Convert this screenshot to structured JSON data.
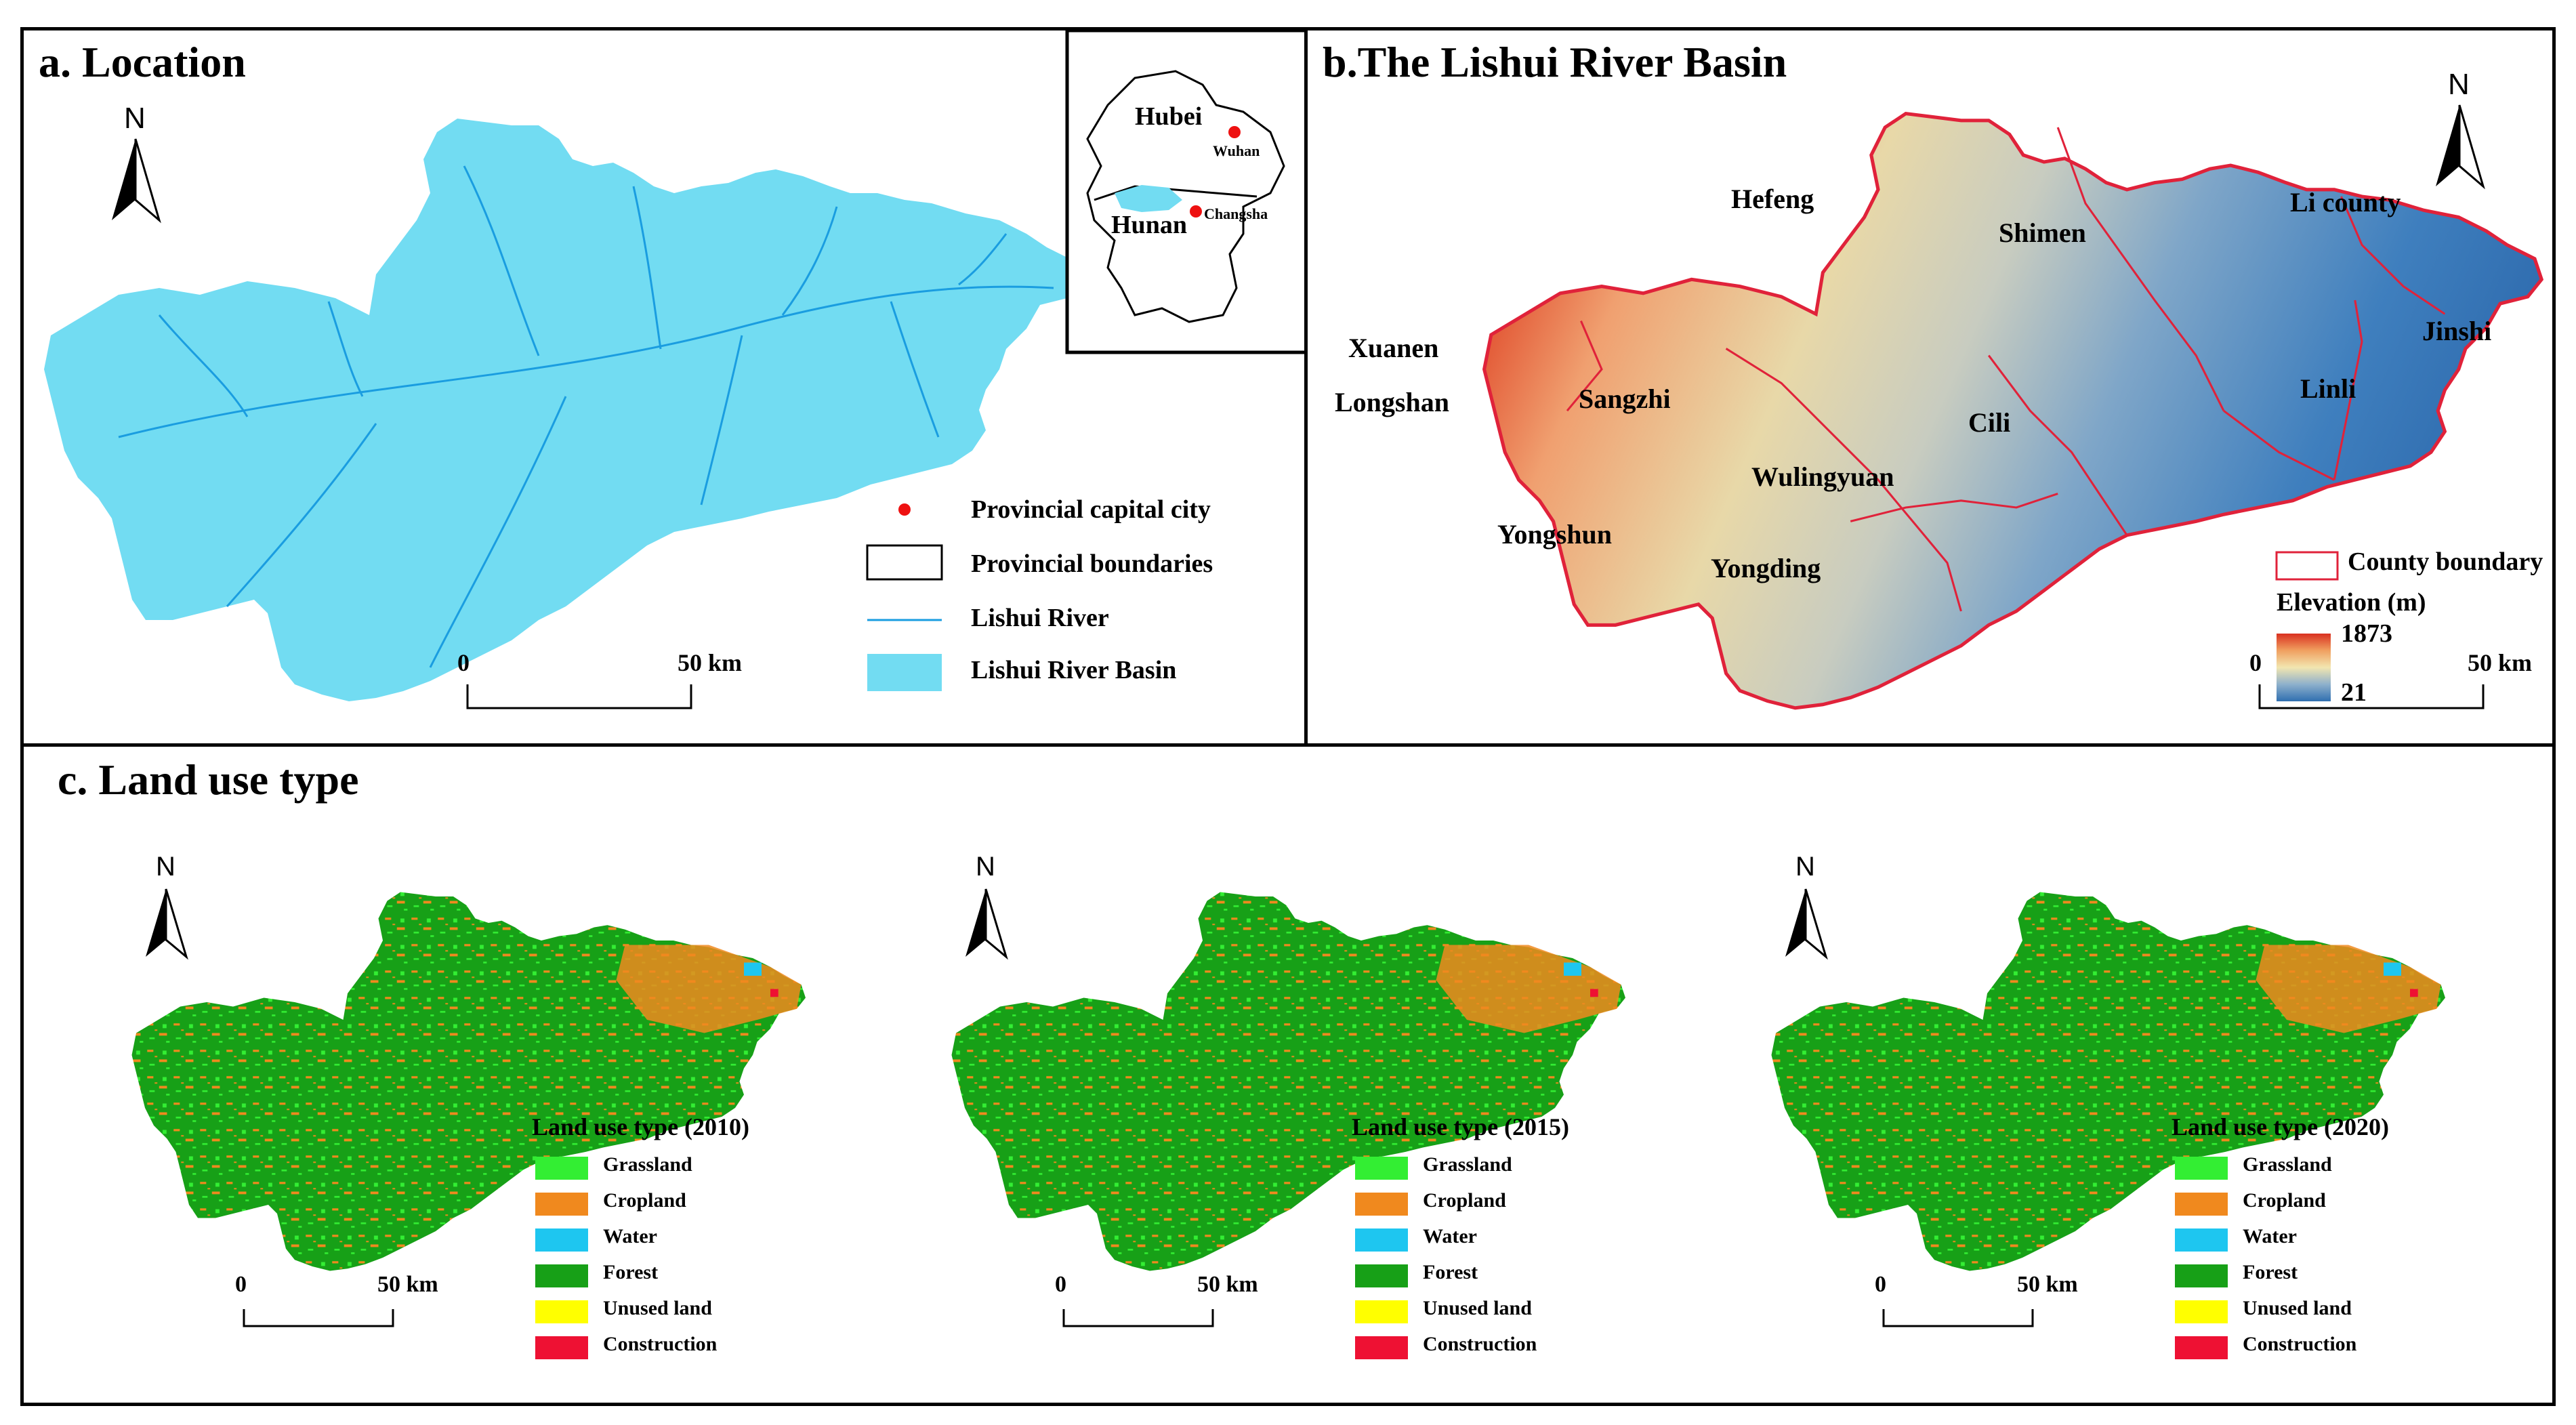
{
  "panel_a": {
    "title": "a. Location",
    "north": "N",
    "inset": {
      "hubei": "Hubei",
      "hunan": "Hunan",
      "wuhan": "Wuhan",
      "changsha": "Changsha"
    },
    "legend": {
      "capital": "Provincial capital city",
      "boundaries": "Provincial boundaries",
      "river": "Lishui River",
      "basin": "Lishui River Basin"
    },
    "scale": {
      "zero": "0",
      "end": "50 km"
    }
  },
  "panel_b": {
    "title": "b.The Lishui River Basin",
    "north": "N",
    "counties": {
      "hefeng": "Hefeng",
      "shimen": "Shimen",
      "li_county": "Li county",
      "xuanen": "Xuanen",
      "longshan": "Longshan",
      "sangzhi": "Sangzhi",
      "cili": "Cili",
      "linli": "Linli",
      "jinshi": "Jinshi",
      "wulingyuan": "Wulingyuan",
      "yongshun": "Yongshun",
      "yongding": "Yongding"
    },
    "legend": {
      "county_boundary": "County boundary",
      "elevation_title": "Elevation (m)",
      "max": "1873",
      "min": "21"
    },
    "scale": {
      "zero": "0",
      "end": "50 km"
    }
  },
  "panel_c": {
    "title": "c. Land use type",
    "maps": [
      {
        "north": "N",
        "legend_title": "Land use type (2010)",
        "scale_zero": "0",
        "scale_end": "50 km"
      },
      {
        "north": "N",
        "legend_title": "Land use type (2015)",
        "scale_zero": "0",
        "scale_end": "50 km"
      },
      {
        "north": "N",
        "legend_title": "Land use type (2020)",
        "scale_zero": "0",
        "scale_end": "50 km"
      }
    ],
    "classes": [
      {
        "label": "Grassland",
        "color": "#33ee33"
      },
      {
        "label": "Cropland",
        "color": "#f0891e"
      },
      {
        "label": "Water",
        "color": "#1ec6f0"
      },
      {
        "label": "Forest",
        "color": "#17a017"
      },
      {
        "label": "Unused land",
        "color": "#ffff00"
      },
      {
        "label": "Construction",
        "color": "#ee1133"
      }
    ]
  },
  "colors": {
    "basin_fill": "#72dcf2",
    "river": "#1a9de0",
    "capital": "#ee1111",
    "county_line": "#e0223a",
    "elev_high": "#d93020",
    "elev_low": "#2f6fb0"
  }
}
